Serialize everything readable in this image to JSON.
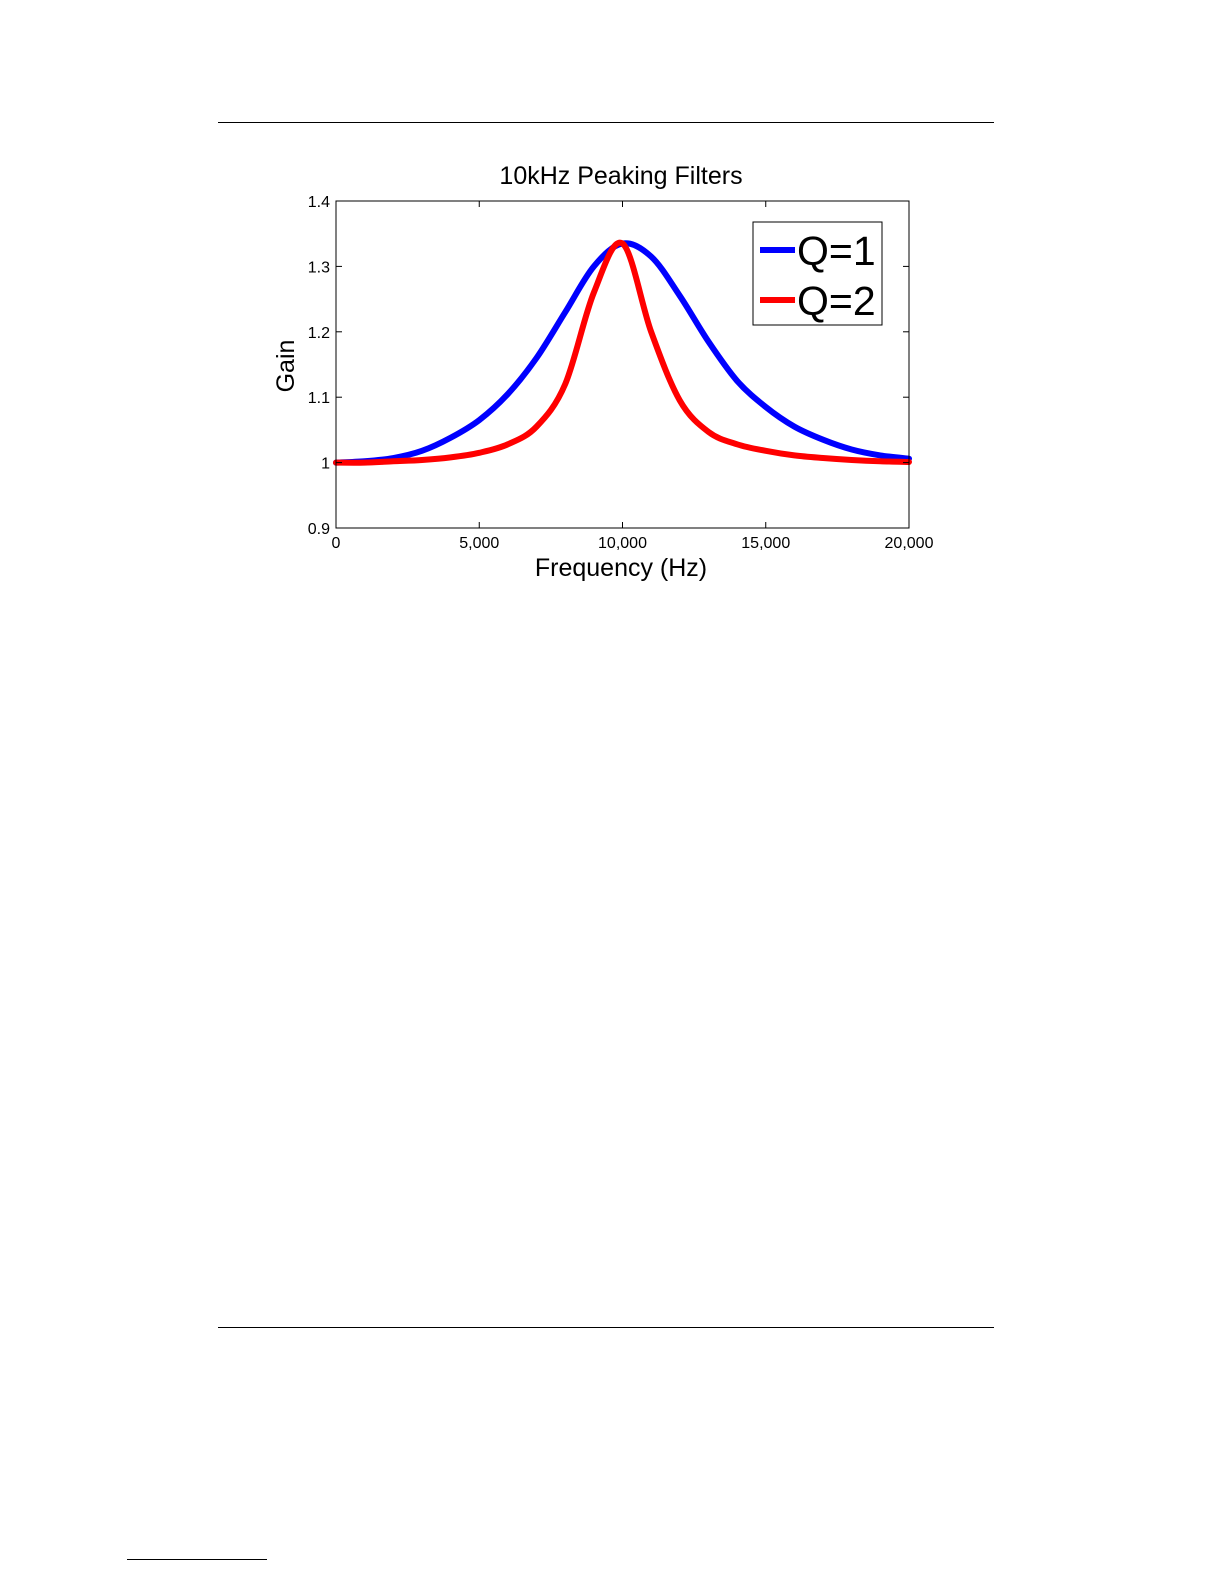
{
  "chart_data": {
    "type": "line",
    "title": "10kHz Peaking Filters",
    "xlabel": "Frequency (Hz)",
    "ylabel": "Gain",
    "xlim": [
      0,
      20000
    ],
    "ylim": [
      0.9,
      1.4
    ],
    "xticks": [
      0,
      5000,
      10000,
      15000,
      20000
    ],
    "xtick_labels": [
      "0",
      "5,000",
      "10,000",
      "15,000",
      "20,000"
    ],
    "yticks": [
      0.9,
      1.0,
      1.1,
      1.2,
      1.3,
      1.4
    ],
    "ytick_labels": [
      "0.9",
      "1",
      "1.1",
      "1.2",
      "1.3",
      "1.4"
    ],
    "grid": false,
    "legend_position": "top-right",
    "x": [
      0,
      1000,
      2000,
      3000,
      4000,
      5000,
      6000,
      7000,
      8000,
      9000,
      10000,
      11000,
      12000,
      13000,
      14000,
      15000,
      16000,
      17000,
      18000,
      19000,
      20000
    ],
    "series": [
      {
        "name": "Q=1",
        "color": "#0000ff",
        "values": [
          1.0,
          1.002,
          1.007,
          1.018,
          1.038,
          1.065,
          1.105,
          1.16,
          1.23,
          1.3,
          1.335,
          1.315,
          1.255,
          1.185,
          1.125,
          1.085,
          1.055,
          1.035,
          1.02,
          1.011,
          1.006
        ]
      },
      {
        "name": "Q=2",
        "color": "#ff0000",
        "values": [
          1.0,
          1.0,
          1.002,
          1.004,
          1.008,
          1.015,
          1.028,
          1.055,
          1.12,
          1.26,
          1.335,
          1.2,
          1.095,
          1.047,
          1.028,
          1.018,
          1.011,
          1.007,
          1.004,
          1.002,
          1.001
        ]
      }
    ]
  }
}
